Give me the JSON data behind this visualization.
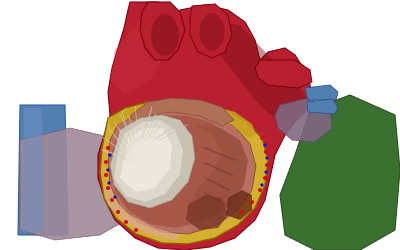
{
  "background_color": "#ffffff",
  "fig_width": 4.0,
  "fig_height": 2.5,
  "dpi": 100,
  "heart_red": "#b82030",
  "heart_mid_red": "#9a1820",
  "heart_dark_red": "#7a1018",
  "yellow_fat": "#c8a020",
  "yellow_fat2": "#d4b030",
  "pink_tissue": "#c89080",
  "pink_light": "#dca898",
  "white_tissue": "#ddd8cc",
  "white_bright": "#eeeae0",
  "blue_vessel": "#5080b0",
  "blue_light": "#7090c0",
  "green_lung": "#3a7030",
  "purple_tissue": "#806880",
  "purple_light": "#a08898",
  "brown_muscle": "#804030",
  "dot_red": "#cc1010",
  "dot_blue": "#1010cc"
}
